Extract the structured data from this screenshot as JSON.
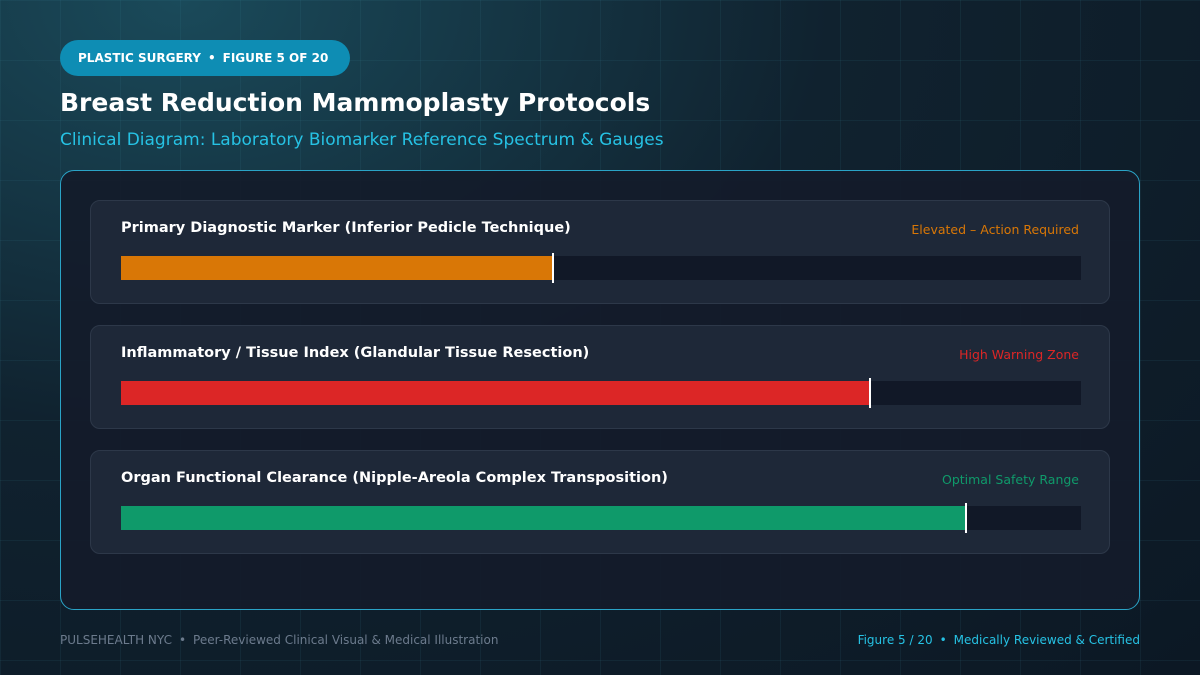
{
  "header": {
    "badge": {
      "category": "PLASTIC SURGERY",
      "separator": "•",
      "figure": "FIGURE 5 OF 20"
    },
    "title": "Breast Reduction Mammoplasty Protocols",
    "subtitle": "Clinical Diagram: Laboratory Biomarker Reference Spectrum & Gauges"
  },
  "gauges": [
    {
      "label": "Primary Diagnostic Marker (Inferior Pedicle Technique)",
      "status": "Elevated – Action Required",
      "value": 45,
      "color": "#d97706"
    },
    {
      "label": "Inflammatory / Tissue Index (Glandular Tissue Resection)",
      "status": "High Warning Zone",
      "value": 78,
      "color": "#dc2626"
    },
    {
      "label": "Organ Functional Clearance (Nipple-Areola Complex Transposition)",
      "status": "Optimal Safety Range",
      "value": 88,
      "color": "#0f9a6a"
    }
  ],
  "footer": {
    "brand": "PULSEHEALTH NYC",
    "separator": "•",
    "left_text": "Peer-Reviewed Clinical Visual & Medical Illustration",
    "figure": "Figure 5 / 20",
    "right_separator": "•",
    "right_text": "Medically Reviewed & Certified"
  }
}
